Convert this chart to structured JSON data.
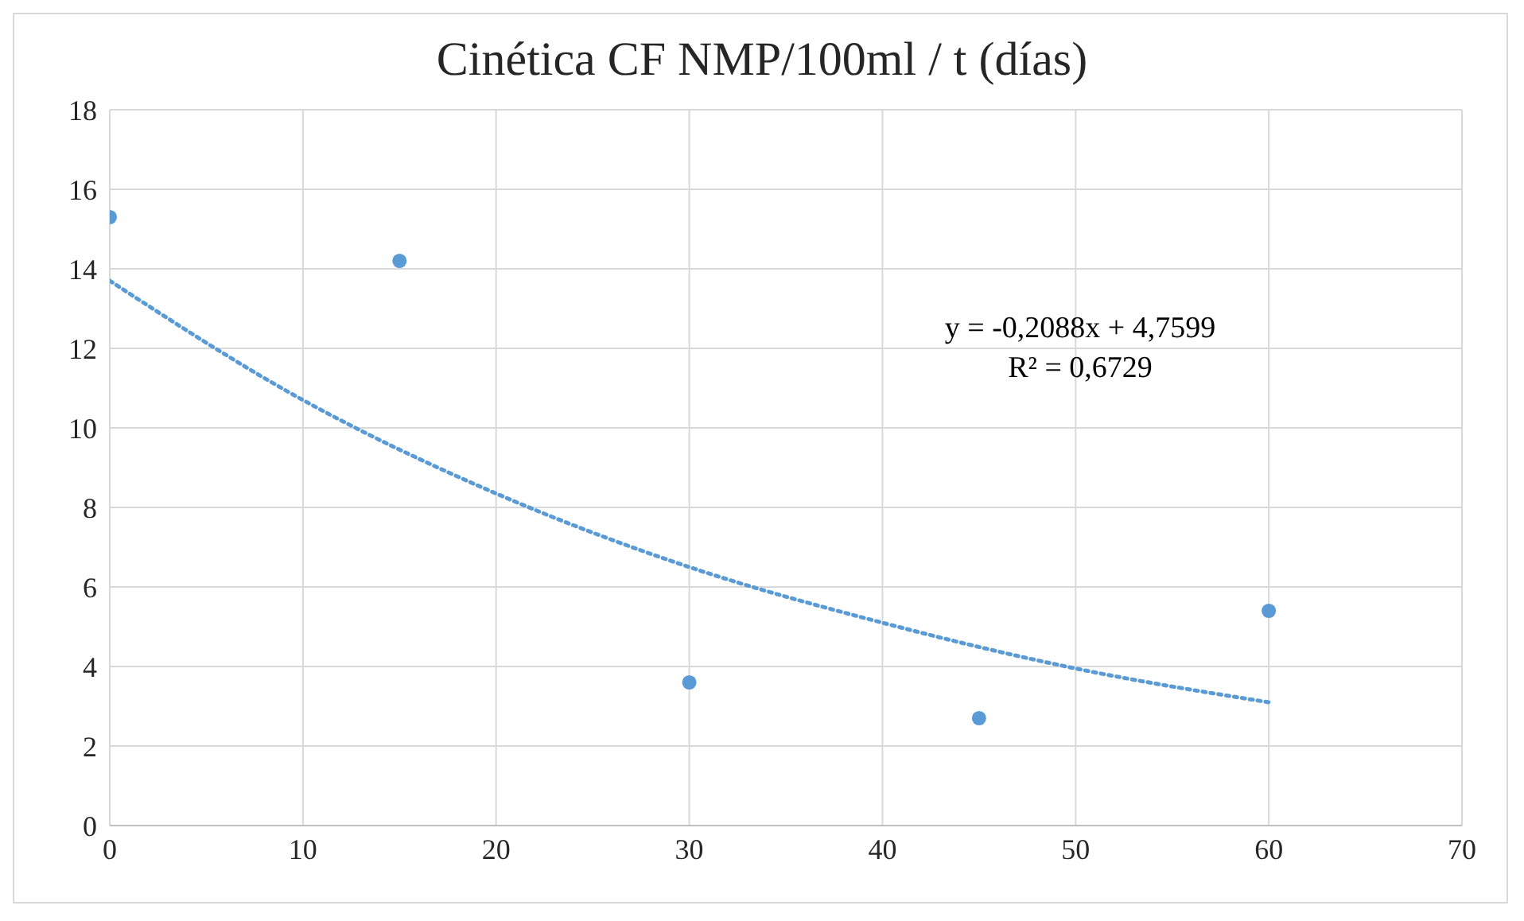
{
  "chart_data": {
    "type": "scatter",
    "title": "Cinética CF NMP/100ml / t (días)",
    "series": [
      {
        "color": "#5b9bd5",
        "marker": "circle",
        "x": [
          0,
          15,
          30,
          45,
          60
        ],
        "values": [
          15.3,
          14.2,
          3.6,
          2.7,
          5.4
        ]
      },
      {
        "type": "line",
        "color": "#5b9bd5",
        "marker": "none",
        "line_style": "dotted",
        "x": [
          0,
          10,
          20,
          30,
          40,
          50,
          60
        ],
        "values": [
          13.7,
          10.7,
          8.35,
          6.5,
          5.1,
          3.95,
          3.1
        ]
      }
    ],
    "xlim": [
      0,
      70
    ],
    "xticks": [
      0,
      10,
      20,
      30,
      40,
      50,
      60,
      70
    ],
    "ylim": [
      0,
      18
    ],
    "yticks": [
      0,
      2,
      4,
      6,
      8,
      10,
      12,
      14,
      16,
      18
    ],
    "grid": true,
    "annotations": [
      "y = -0,2088x + 4,7599",
      "R² = 0,6729"
    ]
  }
}
